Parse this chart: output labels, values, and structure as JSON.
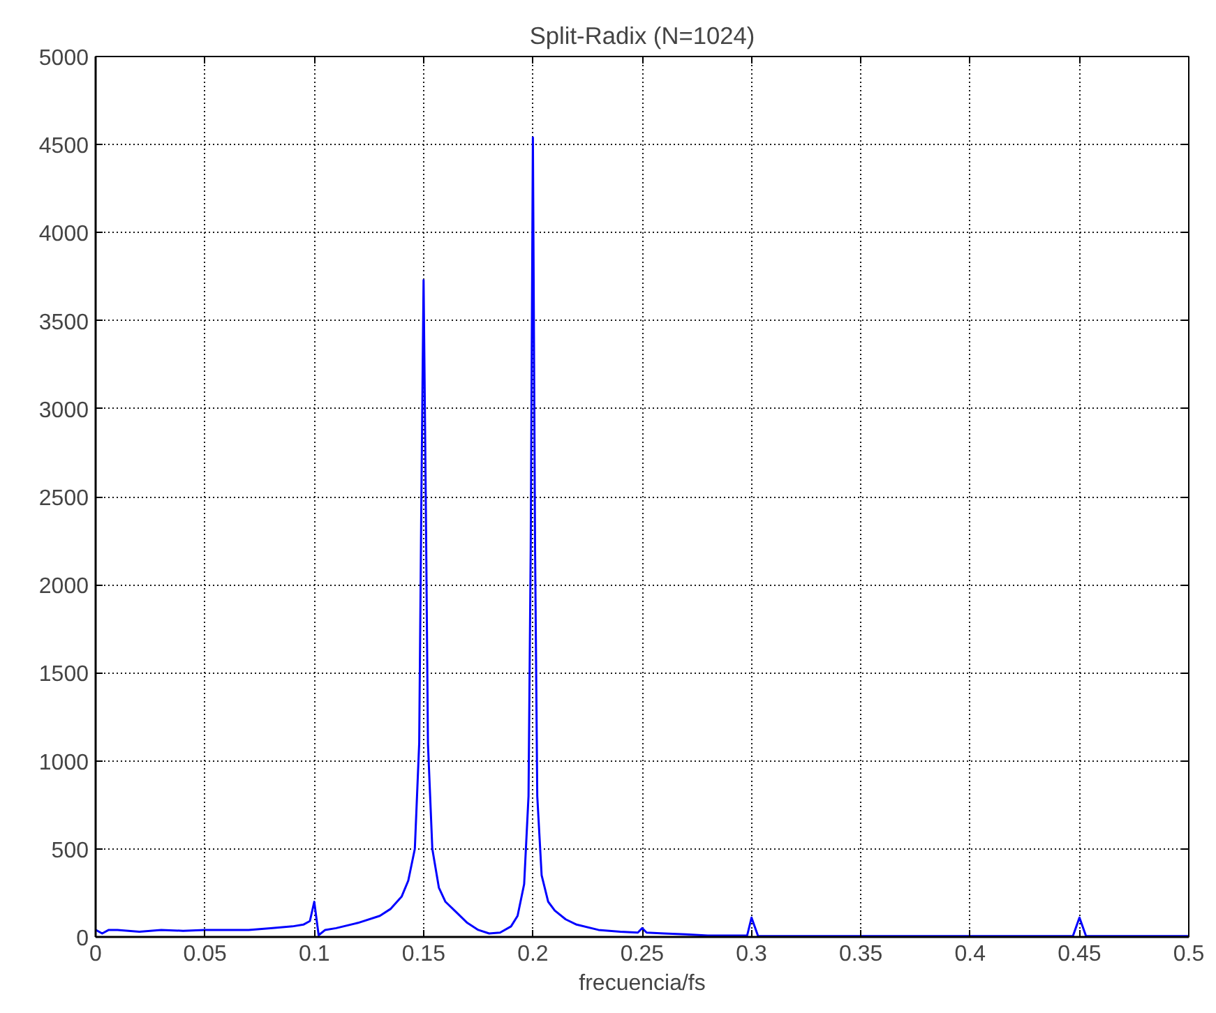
{
  "chart_data": {
    "type": "line",
    "title": "Split-Radix (N=1024)",
    "xlabel": "frecuencia/fs",
    "series": [
      {
        "color": "#0000ff",
        "x": [
          0,
          0.003,
          0.006,
          0.01,
          0.02,
          0.03,
          0.04,
          0.05,
          0.06,
          0.07,
          0.08,
          0.09,
          0.095,
          0.098,
          0.1,
          0.102,
          0.105,
          0.11,
          0.12,
          0.13,
          0.135,
          0.14,
          0.143,
          0.146,
          0.148,
          0.149,
          0.15,
          0.151,
          0.152,
          0.154,
          0.157,
          0.16,
          0.165,
          0.17,
          0.175,
          0.18,
          0.185,
          0.19,
          0.193,
          0.196,
          0.198,
          0.199,
          0.2,
          0.201,
          0.202,
          0.204,
          0.207,
          0.21,
          0.215,
          0.22,
          0.23,
          0.24,
          0.248,
          0.25,
          0.252,
          0.26,
          0.27,
          0.28,
          0.29,
          0.298,
          0.3,
          0.303,
          0.31,
          0.32,
          0.33,
          0.35,
          0.37,
          0.39,
          0.4,
          0.41,
          0.43,
          0.447,
          0.45,
          0.453,
          0.47,
          0.5
        ],
        "values": [
          40,
          20,
          40,
          40,
          30,
          40,
          35,
          40,
          40,
          40,
          50,
          60,
          70,
          90,
          200,
          10,
          40,
          50,
          80,
          120,
          160,
          230,
          320,
          500,
          1100,
          2500,
          3730,
          2500,
          1100,
          500,
          280,
          200,
          140,
          80,
          40,
          20,
          25,
          60,
          120,
          300,
          800,
          2200,
          4540,
          2200,
          800,
          350,
          200,
          150,
          100,
          70,
          40,
          30,
          25,
          50,
          25,
          20,
          15,
          8,
          8,
          8,
          110,
          5,
          5,
          5,
          5,
          5,
          5,
          5,
          5,
          5,
          5,
          5,
          110,
          5,
          5,
          5
        ]
      }
    ],
    "xlim": [
      0,
      0.5
    ],
    "ylim": [
      0,
      5000
    ],
    "xticks": [
      0,
      0.05,
      0.1,
      0.15,
      0.2,
      0.25,
      0.3,
      0.35,
      0.4,
      0.45,
      0.5
    ],
    "yticks": [
      0,
      500,
      1000,
      1500,
      2000,
      2500,
      3000,
      3500,
      4000,
      4500,
      5000
    ],
    "grid": true
  }
}
